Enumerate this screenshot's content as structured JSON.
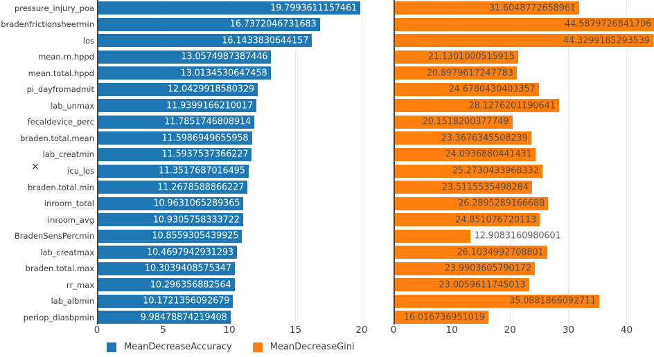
{
  "chart_data": {
    "type": "bar",
    "orientation": "horizontal",
    "title": "",
    "xlabel": "",
    "y_axis_title": "×",
    "grid": true,
    "legend_position": "bottom",
    "legend": [
      "MeanDecreaseAccuracy",
      "MeanDecreaseGini"
    ],
    "categories": [
      "pressure_injury_poa",
      "bradenfrictionsheermin",
      "los",
      "mean.rn.hppd",
      "mean.total.hppd",
      "pi_dayfromadmit",
      "lab_unmax",
      "fecaldevice_perc",
      "braden.total.mean",
      "lab_creatmin",
      "icu_los",
      "braden.total.min",
      "inroom_total",
      "inroom_avg",
      "BradenSensPercmin",
      "lab_creatmax",
      "braden.total.max",
      "rr_max",
      "lab_albmin",
      "periop_diasbpmin"
    ],
    "series": [
      {
        "name": "MeanDecreaseAccuracy",
        "color": "#1f77b4",
        "value_label_color": "#ffffff",
        "axis_ticks": [
          0,
          5,
          10,
          15,
          20
        ],
        "axis_max": 21.05,
        "values": [
          "19.7993611157461",
          "16.7372046731683",
          "16.1433830644157",
          "13.0574987387446",
          "13.0134530647458",
          "12.0429918580329",
          "11.9399166210017",
          "11.7851746808914",
          "11.5986949655958",
          "11.5937537366227",
          "11.3517687016495",
          "11.2678588866227",
          "10.9631065289365",
          "10.9305758333722",
          "10.8559305439925",
          "10.4697942931293",
          "10.3039408575347",
          "10.296356882564",
          "10.1721356092679",
          "9.98478874219408"
        ]
      },
      {
        "name": "MeanDecreaseGini",
        "color": "#ff7f0e",
        "value_label_color": "#4f4f4f",
        "axis_ticks": [
          0,
          10,
          20,
          30,
          40
        ],
        "axis_max": 44.7,
        "values": [
          "31.6048772658961",
          "44.5879726841706",
          "44.3299185293539",
          "21.1301000515915",
          "20.8979617247783",
          "24.6780430403357",
          "28.1276201190641",
          "20.1518200377749",
          "23.3676345508239",
          "24.0936880441431",
          "25.2730433968332",
          "23.5115535498284",
          "26.2895289166688",
          "24.851076720113",
          "12.9083160980601",
          "26.1034992708801",
          "23.9903605790172",
          "23.0059611745013",
          "35.0881866092711",
          "16.016736951019"
        ]
      }
    ],
    "colors": {
      "accuracy_bar": "#1f77b4",
      "gini_bar": "#ff7f0e",
      "axis_line": "#444444",
      "gridline": "#e9e9e9",
      "tick_text": "#3d3d3d",
      "outside_value_label": "#666666"
    }
  }
}
